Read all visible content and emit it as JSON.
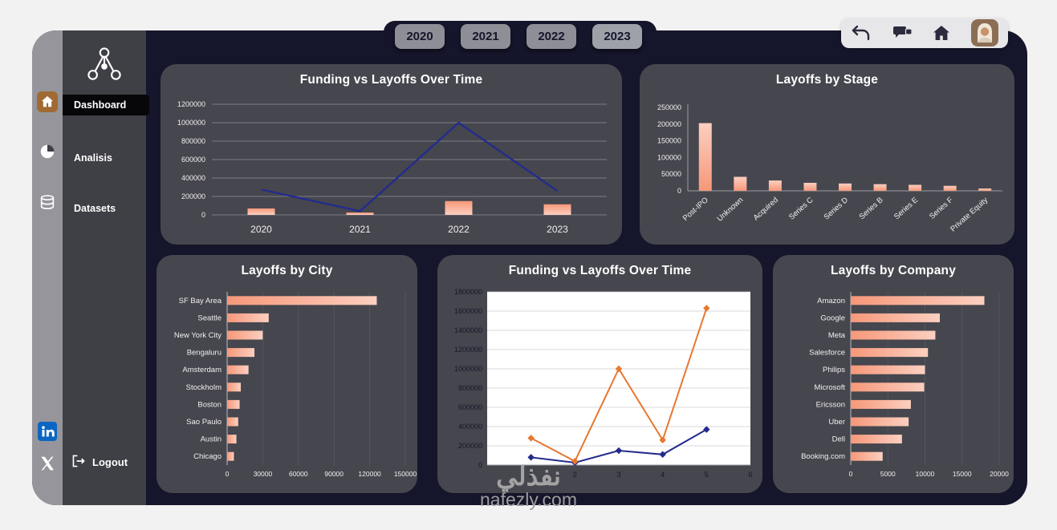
{
  "colors": {
    "page_bg": "#f2f2f2",
    "shell_bg": "#15152b",
    "panel_bg": "#46464e",
    "sidebar_bg": "#3f3f46",
    "sidebar_rail_bg": "#95959b",
    "bar_fill": "#f69879",
    "bar_fill_light": "#fccfc0",
    "line_navy": "#232c8c",
    "line_orange": "#e87730",
    "active_item_bg": "#070709",
    "linkedin_blue": "#0a66c2"
  },
  "topbar": {
    "years": [
      "2020",
      "2021",
      "2022",
      "2023"
    ],
    "active_year": "2023",
    "icons": [
      {
        "name": "undo-icon"
      },
      {
        "name": "comments-icon"
      },
      {
        "name": "home-icon"
      },
      {
        "name": "user-avatar"
      }
    ]
  },
  "sidebar": {
    "items": [
      {
        "label": "Dashboard",
        "icon": "home-icon",
        "active": true
      },
      {
        "label": "Analisis",
        "icon": "pie-chart-icon",
        "active": false
      },
      {
        "label": "Datasets",
        "icon": "database-icon",
        "active": false
      }
    ],
    "logout_label": "Logout",
    "social": [
      {
        "name": "linkedin-icon"
      },
      {
        "name": "x-twitter-icon"
      }
    ]
  },
  "watermark": {
    "arabic": "نفذلي",
    "domain": "nafezly.com"
  },
  "chart_data": [
    {
      "id": "funding-vs-layoffs-combo",
      "type": "combo",
      "title": "Funding vs Layoffs Over Time",
      "categories": [
        "2020",
        "2021",
        "2022",
        "2023"
      ],
      "series": [
        {
          "name": "Layoffs",
          "render": "bar",
          "values": [
            70000,
            25000,
            150000,
            115000
          ]
        },
        {
          "name": "Funding",
          "render": "line",
          "color": "#232c8c",
          "values": [
            275000,
            40000,
            1000000,
            260000
          ]
        }
      ],
      "ylim": [
        0,
        1200000
      ],
      "ytick_step": 200000,
      "grid": "horizontal",
      "legend": "none"
    },
    {
      "id": "layoffs-by-stage",
      "type": "bar",
      "title": "Layoffs by Stage",
      "categories": [
        "Post-IPO",
        "Unknown",
        "Acquired",
        "Series C",
        "Series D",
        "Series B",
        "Series E",
        "Series F",
        "Private Equity"
      ],
      "values": [
        203000,
        42000,
        31000,
        24000,
        22000,
        20000,
        18000,
        15000,
        7000
      ],
      "ylim": [
        0,
        250000
      ],
      "ytick_step": 50000,
      "x_label_rotation": -42,
      "grid": "off",
      "legend": "none"
    },
    {
      "id": "layoffs-by-city",
      "type": "bar",
      "orientation": "horizontal",
      "title": "Layoffs by City",
      "categories": [
        "SF Bay Area",
        "Seattle",
        "New York City",
        "Bengaluru",
        "Amsterdam",
        "Stockholm",
        "Boston",
        "Sao Paulo",
        "Austin",
        "Chicago"
      ],
      "values": [
        126000,
        35000,
        30000,
        23000,
        18000,
        11500,
        10500,
        9300,
        7800,
        5700
      ],
      "xlim": [
        0,
        150000
      ],
      "xtick_step": 30000,
      "grid": "vertical",
      "legend": "none"
    },
    {
      "id": "funding-vs-layoffs-lines",
      "type": "line",
      "title": "Funding vs Layoffs Over Time",
      "x": [
        1,
        2,
        3,
        4,
        5
      ],
      "series": [
        {
          "name": "Layoffs",
          "color": "#232c8c",
          "values": [
            80000,
            25000,
            150000,
            110000,
            370000
          ]
        },
        {
          "name": "Funding",
          "color": "#e87730",
          "values": [
            280000,
            40000,
            1000000,
            260000,
            1630000
          ]
        }
      ],
      "ylim": [
        0,
        1800000
      ],
      "ytick_step": 200000,
      "xlim": [
        0,
        6
      ],
      "xticks": [
        1,
        2,
        3,
        4,
        5,
        6
      ],
      "plot_bg": "#ffffff",
      "grid": "horizontal",
      "legend": "none"
    },
    {
      "id": "layoffs-by-company",
      "type": "bar",
      "orientation": "horizontal",
      "title": "Layoffs by Company",
      "categories": [
        "Amazon",
        "Google",
        "Meta",
        "Salesforce",
        "Philips",
        "Microsoft",
        "Ericsson",
        "Uber",
        "Dell",
        "Booking.com"
      ],
      "values": [
        18000,
        12000,
        11400,
        10400,
        10000,
        9900,
        8100,
        7800,
        6900,
        4300
      ],
      "xlim": [
        0,
        20000
      ],
      "xtick_step": 5000,
      "grid": "vertical",
      "legend": "none"
    }
  ]
}
